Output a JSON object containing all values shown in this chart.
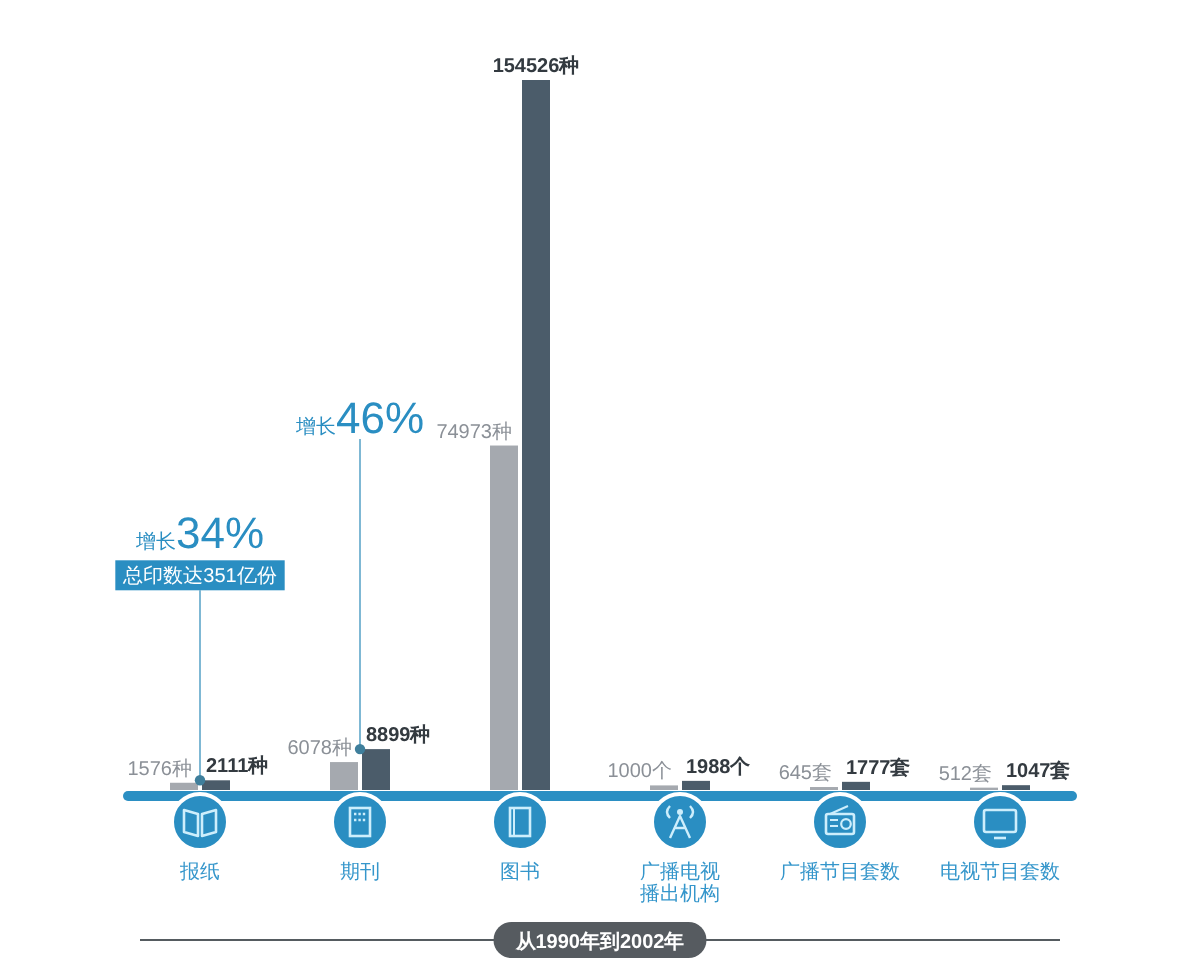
{
  "chart_data": {
    "type": "bar",
    "categories": [
      "报纸",
      "期刊",
      "图书",
      "广播电视播出机构",
      "广播节目套数",
      "电视节目套数"
    ],
    "series": [
      {
        "color": "#a5a9af",
        "values": [
          1576,
          6078,
          74973,
          1000,
          645,
          512
        ],
        "value_labels": [
          "1576种",
          "6078种",
          "74973种",
          "1000个",
          "645套",
          "512套"
        ]
      },
      {
        "color": "#4b5c6a",
        "values": [
          2111,
          8899,
          154526,
          1988,
          1777,
          1047
        ],
        "value_labels": [
          "2111种",
          "8899种",
          "154526种",
          "1988个",
          "1777套",
          "1047套"
        ]
      }
    ],
    "annotations": [
      {
        "text": "增长34%",
        "x": "报纸",
        "y": 2111
      },
      {
        "text": "总印数达351亿份",
        "x": "报纸",
        "y": 2111
      },
      {
        "text": "增长46%",
        "x": "期刊",
        "y": 8899
      },
      "从1990年到2002年"
    ]
  }
}
